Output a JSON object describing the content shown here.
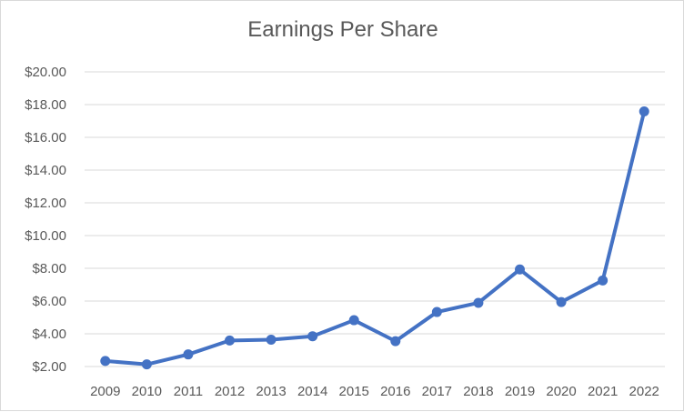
{
  "chart_data": {
    "type": "line",
    "title": "Earnings Per Share",
    "xlabel": "",
    "ylabel": "",
    "categories": [
      "2009",
      "2010",
      "2011",
      "2012",
      "2013",
      "2014",
      "2015",
      "2016",
      "2017",
      "2018",
      "2019",
      "2020",
      "2021",
      "2022"
    ],
    "series": [
      {
        "values": [
          2.34,
          2.13,
          2.74,
          3.59,
          3.64,
          3.85,
          4.83,
          3.55,
          5.33,
          5.89,
          7.93,
          5.94,
          7.26,
          17.58
        ],
        "color": "#4472c4"
      }
    ],
    "ylim": [
      2,
      20
    ],
    "yticks": [
      2,
      4,
      6,
      8,
      10,
      12,
      14,
      16,
      18,
      20
    ],
    "ytick_labels": [
      "$2.00",
      "$4.00",
      "$6.00",
      "$8.00",
      "$10.00",
      "$12.00",
      "$14.00",
      "$16.00",
      "$18.00",
      "$20.00"
    ],
    "grid": true,
    "legend": false
  }
}
